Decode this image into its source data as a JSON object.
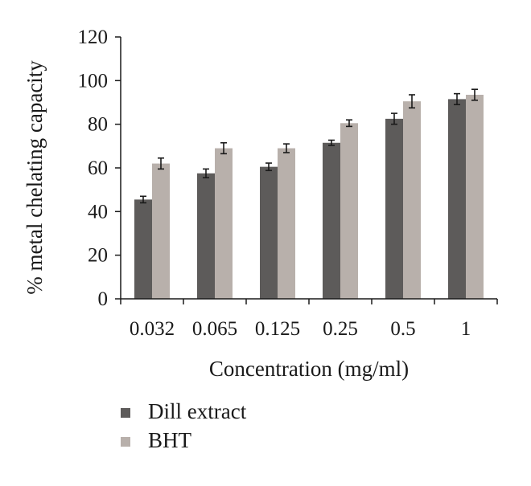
{
  "chart_data": {
    "type": "bar",
    "categories": [
      "0.032",
      "0.065",
      "0.125",
      "0.25",
      "0.5",
      "1"
    ],
    "series": [
      {
        "name": "Dill extract",
        "color": "#5d5b5a",
        "values": [
          45.5,
          57.5,
          60.5,
          71.5,
          82.5,
          91.5
        ],
        "errors": [
          1.5,
          2.0,
          1.7,
          1.2,
          2.5,
          2.5
        ]
      },
      {
        "name": "BHT",
        "color": "#b8b0ab",
        "values": [
          62,
          69,
          69,
          80.5,
          90.5,
          93.5
        ],
        "errors": [
          2.5,
          2.5,
          2.0,
          1.5,
          3.0,
          2.5
        ]
      }
    ],
    "xlabel": "Concentration (mg/ml)",
    "ylabel": "% metal chelating capacity",
    "ylim": [
      0,
      120
    ],
    "yticks": [
      0,
      20,
      40,
      60,
      80,
      100,
      120
    ],
    "grid": false,
    "legend": "bottom-left"
  }
}
